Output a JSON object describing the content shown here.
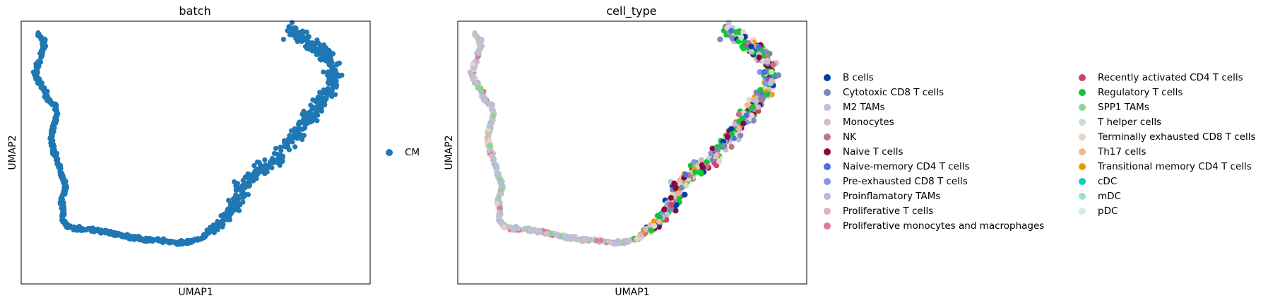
{
  "chart_data": [
    {
      "type": "scatter",
      "title": "batch",
      "xlabel": "UMAP1",
      "ylabel": "UMAP2",
      "xlim": [
        0,
        10
      ],
      "ylim": [
        0,
        10
      ],
      "ticks": "none",
      "grid": false,
      "legend_position": "right",
      "series": [
        {
          "name": "CM",
          "color": "#1f77b4"
        }
      ]
    },
    {
      "type": "scatter",
      "title": "cell_type",
      "xlabel": "UMAP1",
      "ylabel": "UMAP2",
      "xlim": [
        0,
        10
      ],
      "ylim": [
        0,
        10
      ],
      "ticks": "none",
      "grid": false,
      "legend_position": "right",
      "series": [
        {
          "name": "B cells",
          "color": "#023fa5"
        },
        {
          "name": "Cytotoxic CD8 T cells",
          "color": "#7d87b9"
        },
        {
          "name": "M2 TAMs",
          "color": "#bec1d4"
        },
        {
          "name": "Monocytes",
          "color": "#d6bcc0"
        },
        {
          "name": "NK",
          "color": "#bb7784"
        },
        {
          "name": "Naive T cells",
          "color": "#8e063b"
        },
        {
          "name": "Naive-memory CD4 T cells",
          "color": "#4a6fe3"
        },
        {
          "name": "Pre-exhausted CD8 T cells",
          "color": "#8595e1"
        },
        {
          "name": "Proinflamatory TAMs",
          "color": "#b5bbe3"
        },
        {
          "name": "Proliferative T cells",
          "color": "#e6afb9"
        },
        {
          "name": "Proliferative monocytes and macrophages",
          "color": "#e07b91"
        },
        {
          "name": "Recently activated CD4 T cells",
          "color": "#d33f6a"
        },
        {
          "name": "Regulatory T cells",
          "color": "#11c638"
        },
        {
          "name": "SPP1 TAMs",
          "color": "#8dd593"
        },
        {
          "name": "T helper cells",
          "color": "#c6dec7"
        },
        {
          "name": "Terminally exhausted CD8 T cells",
          "color": "#ead3c6"
        },
        {
          "name": "Th17 cells",
          "color": "#f0b98d"
        },
        {
          "name": "Transitional memory CD4 T cells",
          "color": "#ef9708"
        },
        {
          "name": "cDC",
          "color": "#0fcfc0"
        },
        {
          "name": "mDC",
          "color": "#9cded6"
        },
        {
          "name": "pDC",
          "color": "#d5eae7"
        }
      ]
    }
  ]
}
